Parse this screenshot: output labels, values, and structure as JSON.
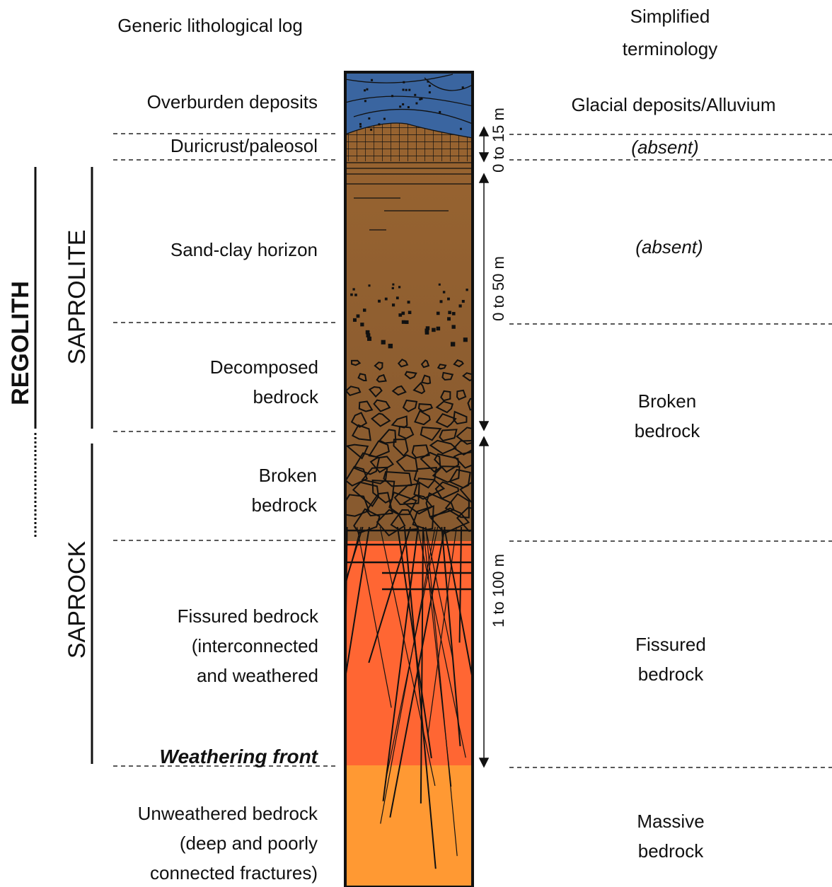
{
  "headers": {
    "left": "Generic lithological log",
    "right": [
      "Simplified",
      "terminology"
    ]
  },
  "left_labels": {
    "overburden": [
      "Overburden deposits"
    ],
    "duricrust": [
      "Duricrust/paleosol"
    ],
    "sand_clay": [
      "Sand-clay horizon"
    ],
    "decomposed": [
      "Decomposed",
      "bedrock"
    ],
    "broken": [
      "Broken",
      "bedrock"
    ],
    "fissured": [
      "Fissured bedrock",
      "(interconnected",
      "and weathered"
    ],
    "front": "Weathering front",
    "unweathered": [
      "Unweathered bedrock",
      "(deep and poorly",
      "connected fractures)"
    ]
  },
  "right_labels": {
    "glacial": [
      "Glacial deposits/Alluvium"
    ],
    "absent_1": "(absent)",
    "absent_2": "(absent)",
    "broken": [
      "Broken",
      "bedrock"
    ],
    "fissured": [
      "Fissured",
      "bedrock"
    ],
    "massive": [
      "Massive",
      "bedrock"
    ]
  },
  "zones": {
    "regolith": "REGOLITH",
    "saprolite": "SAPROLITE",
    "saprock": "SAPROCK"
  },
  "thickness": [
    "0 to 15 m",
    "0 to 50 m",
    "1 to 100 m"
  ]
}
